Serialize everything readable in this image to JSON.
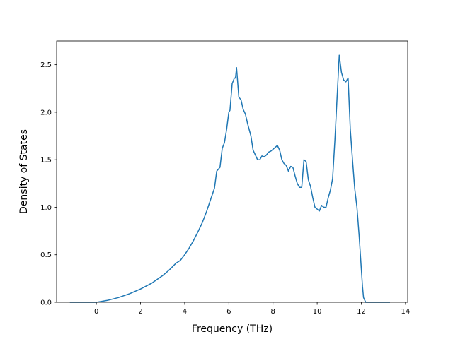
{
  "chart_data": {
    "type": "line",
    "title": "",
    "xlabel": "Frequency (THz)",
    "ylabel": "Density of States",
    "xlim": [
      -1.8,
      14.1
    ],
    "ylim": [
      0.0,
      2.75
    ],
    "xticks": [
      0,
      2,
      4,
      6,
      8,
      10,
      12,
      14
    ],
    "yticks": [
      0.0,
      0.5,
      1.0,
      1.5,
      2.0,
      2.5
    ],
    "xtick_labels": [
      "0",
      "2",
      "4",
      "6",
      "8",
      "10",
      "12",
      "14"
    ],
    "ytick_labels": [
      "0.0",
      "0.5",
      "1.0",
      "1.5",
      "2.0",
      "2.5"
    ],
    "grid": false,
    "line_color": "#1f77b4",
    "series": [
      {
        "x": [
          -1.2,
          -0.5,
          0.0,
          0.5,
          1.0,
          1.5,
          2.0,
          2.5,
          3.0,
          3.3,
          3.6,
          3.8,
          4.0,
          4.2,
          4.4,
          4.6,
          4.8,
          5.0,
          5.2,
          5.35,
          5.45,
          5.6,
          5.7,
          5.8,
          5.9,
          6.0,
          6.05,
          6.15,
          6.25,
          6.3,
          6.35,
          6.45,
          6.55,
          6.65,
          6.75,
          6.85,
          7.0,
          7.1,
          7.2,
          7.3,
          7.4,
          7.5,
          7.6,
          7.7,
          7.8,
          7.9,
          8.0,
          8.1,
          8.2,
          8.3,
          8.4,
          8.5,
          8.6,
          8.7,
          8.8,
          8.9,
          9.0,
          9.1,
          9.2,
          9.3,
          9.4,
          9.5,
          9.6,
          9.7,
          9.8,
          9.9,
          10.0,
          10.1,
          10.2,
          10.3,
          10.4,
          10.5,
          10.6,
          10.7,
          10.8,
          10.9,
          11.0,
          11.1,
          11.2,
          11.3,
          11.4,
          11.5,
          11.6,
          11.7,
          11.8,
          11.9,
          12.0,
          12.05,
          12.1,
          12.2,
          12.5,
          13.0,
          13.3
        ],
        "y": [
          0.0,
          0.0,
          0.0,
          0.02,
          0.05,
          0.09,
          0.14,
          0.2,
          0.28,
          0.34,
          0.41,
          0.44,
          0.5,
          0.57,
          0.65,
          0.74,
          0.84,
          0.96,
          1.1,
          1.2,
          1.38,
          1.42,
          1.62,
          1.68,
          1.82,
          2.0,
          2.02,
          2.3,
          2.36,
          2.36,
          2.47,
          2.16,
          2.13,
          2.03,
          1.98,
          1.88,
          1.75,
          1.6,
          1.55,
          1.5,
          1.5,
          1.54,
          1.53,
          1.55,
          1.58,
          1.59,
          1.61,
          1.63,
          1.65,
          1.6,
          1.5,
          1.46,
          1.44,
          1.38,
          1.43,
          1.42,
          1.33,
          1.25,
          1.21,
          1.21,
          1.5,
          1.48,
          1.29,
          1.22,
          1.1,
          1.0,
          0.98,
          0.96,
          1.02,
          1.0,
          1.0,
          1.1,
          1.18,
          1.3,
          1.7,
          2.15,
          2.6,
          2.42,
          2.34,
          2.32,
          2.36,
          1.82,
          1.5,
          1.2,
          1.0,
          0.7,
          0.35,
          0.17,
          0.05,
          0.0,
          0.0,
          0.0,
          0.0
        ]
      }
    ]
  }
}
